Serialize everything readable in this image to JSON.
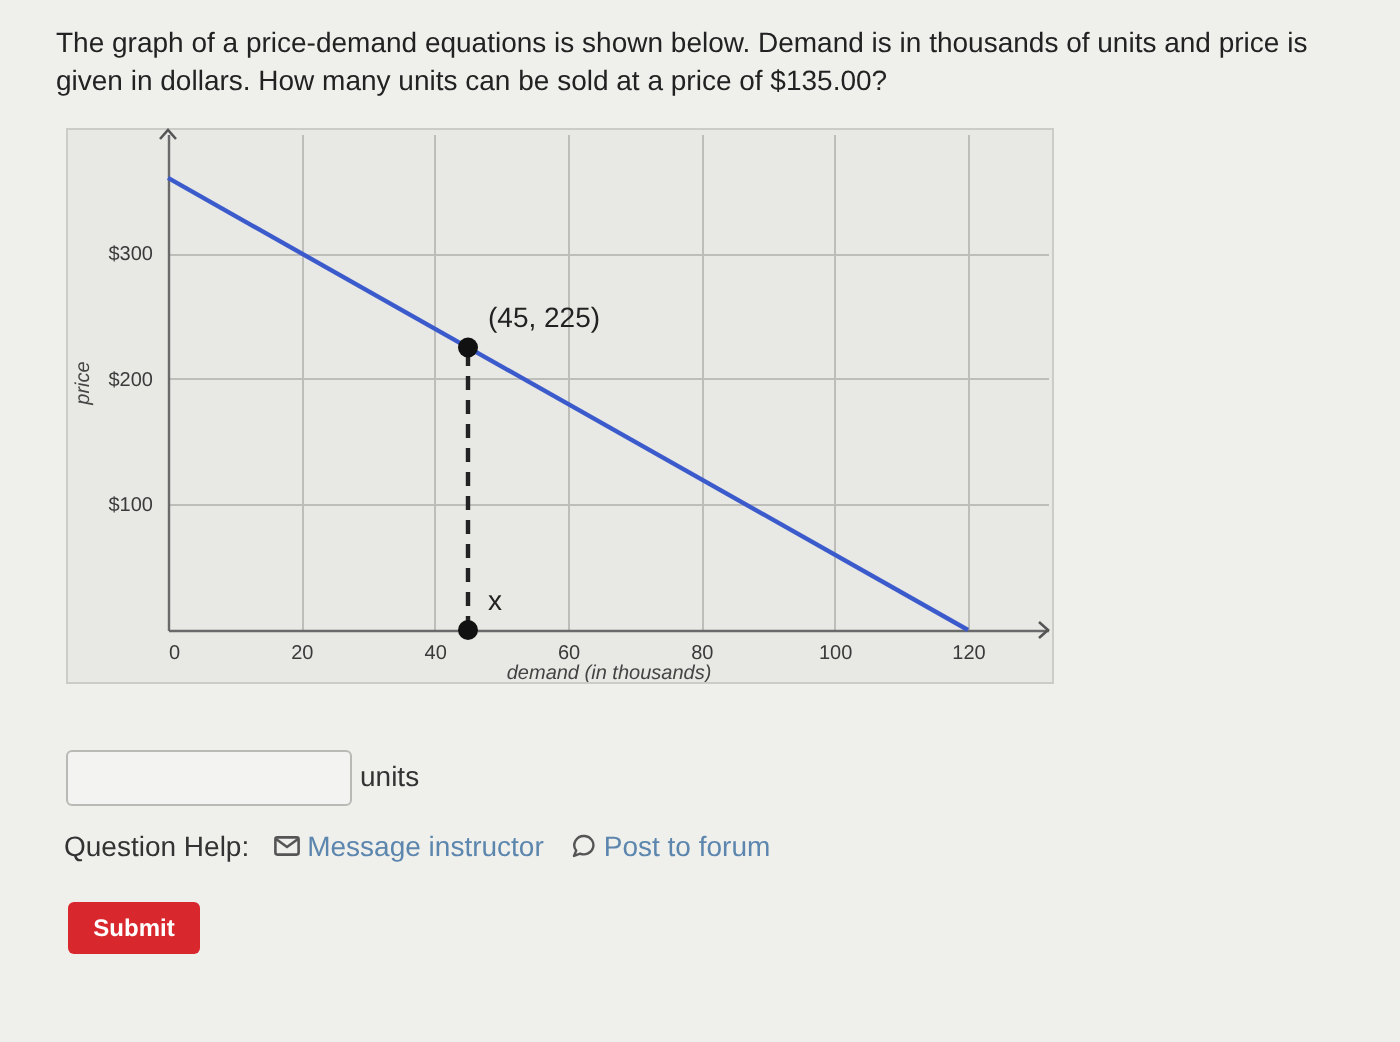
{
  "chart_data": {
    "type": "line",
    "title": "The graph of a price-demand equations is shown below. Demand is in thousands of units and price is given in dollars. How many units can be sold at a price of $135.00?",
    "xlabel": "demand (in thousands)",
    "ylabel": "price",
    "xlim": [
      0,
      132
    ],
    "ylim": [
      0,
      395
    ],
    "xticks": [
      0,
      20,
      40,
      60,
      80,
      100,
      120
    ],
    "yticks": [
      {
        "value": 100,
        "label": "$100"
      },
      {
        "value": 200,
        "label": "$200"
      },
      {
        "value": 300,
        "label": "$300"
      }
    ],
    "grid": true,
    "series": [
      {
        "color": "#3b5bcc",
        "x": [
          0,
          120
        ],
        "values": [
          360,
          0
        ]
      },
      {
        "color": "#222222",
        "line_style": "dashed",
        "x": [
          45,
          45
        ],
        "values": [
          0,
          225
        ]
      },
      {
        "type": "scatter",
        "color": "#111111",
        "marker": "circle",
        "x": [
          45,
          45
        ],
        "values": [
          225,
          0
        ]
      }
    ],
    "annotations": [
      {
        "text": "(45, 225)",
        "x": 45,
        "y": 225
      },
      {
        "text": "x",
        "x": 45,
        "y": 0
      },
      "units",
      "Question Help:",
      "Message instructor",
      "Post to forum",
      "Submit"
    ]
  }
}
